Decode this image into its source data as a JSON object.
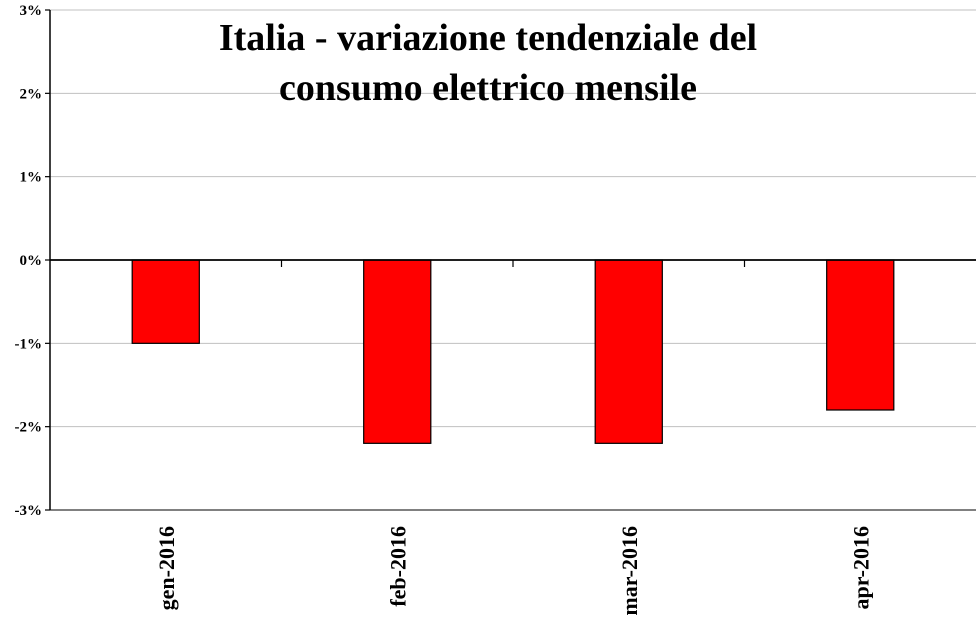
{
  "chart_data": {
    "type": "bar",
    "title_lines": [
      "Italia - variazione tendenziale del",
      "consumo elettrico mensile"
    ],
    "categories": [
      "gen-2016",
      "feb-2016",
      "mar-2016",
      "apr-2016"
    ],
    "values": [
      -1.0,
      -2.2,
      -2.2,
      -1.8
    ],
    "ylim": [
      -3,
      3
    ],
    "yticks": [
      3,
      2,
      1,
      0,
      -1,
      -2,
      -3
    ],
    "ytick_labels": [
      "3%",
      "2%",
      "1%",
      "0%",
      "-1%",
      "-2%",
      "-3%"
    ],
    "grid": true,
    "legend": "none",
    "colors": {
      "bar_fill": "#ff0000",
      "bar_stroke": "#000000",
      "grid": "#c0c0c0"
    }
  }
}
